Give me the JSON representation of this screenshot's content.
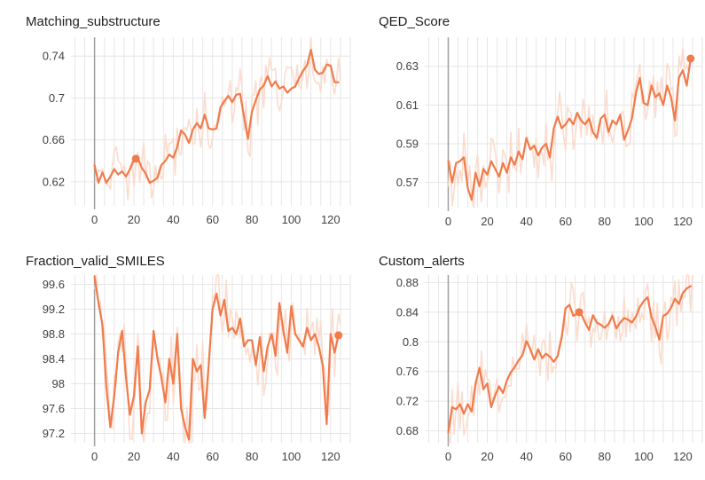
{
  "colors": {
    "line": "#f07b4b",
    "raw_line": "#fbd6c6",
    "grid": "#e6e6e6",
    "origin_axis": "#9e9e9e",
    "text": "#424242"
  },
  "chart_data": [
    {
      "type": "line",
      "title": "Matching_substructure",
      "xlim": [
        -12,
        130
      ],
      "ylim": [
        0.597,
        0.758
      ],
      "x_ticks": [
        "0",
        "20",
        "40",
        "60",
        "80",
        "100",
        "120"
      ],
      "y_ticks": [
        "0.74",
        "0.7",
        "0.66",
        "0.62"
      ],
      "series": [
        {
          "role": "smoothed",
          "points": [
            [
              0,
              0.636
            ],
            [
              2,
              0.619
            ],
            [
              4,
              0.629
            ],
            [
              6,
              0.619
            ],
            [
              8,
              0.625
            ],
            [
              10,
              0.632
            ],
            [
              12,
              0.627
            ],
            [
              14,
              0.63
            ],
            [
              16,
              0.625
            ],
            [
              18,
              0.632
            ],
            [
              20,
              0.641
            ],
            [
              22,
              0.643
            ],
            [
              24,
              0.633
            ],
            [
              26,
              0.628
            ],
            [
              28,
              0.619
            ],
            [
              30,
              0.621
            ],
            [
              32,
              0.624
            ],
            [
              34,
              0.636
            ],
            [
              36,
              0.64
            ],
            [
              38,
              0.646
            ],
            [
              40,
              0.643
            ],
            [
              42,
              0.653
            ],
            [
              44,
              0.669
            ],
            [
              46,
              0.665
            ],
            [
              48,
              0.657
            ],
            [
              50,
              0.67
            ],
            [
              52,
              0.676
            ],
            [
              54,
              0.671
            ],
            [
              56,
              0.684
            ],
            [
              58,
              0.671
            ],
            [
              60,
              0.67
            ],
            [
              62,
              0.671
            ],
            [
              64,
              0.691
            ],
            [
              66,
              0.697
            ],
            [
              68,
              0.702
            ],
            [
              70,
              0.696
            ],
            [
              72,
              0.703
            ],
            [
              74,
              0.704
            ],
            [
              76,
              0.682
            ],
            [
              78,
              0.661
            ],
            [
              80,
              0.687
            ],
            [
              82,
              0.698
            ],
            [
              84,
              0.708
            ],
            [
              86,
              0.712
            ],
            [
              88,
              0.721
            ],
            [
              90,
              0.711
            ],
            [
              92,
              0.716
            ],
            [
              94,
              0.709
            ],
            [
              96,
              0.711
            ],
            [
              98,
              0.705
            ],
            [
              100,
              0.709
            ],
            [
              102,
              0.711
            ],
            [
              104,
              0.719
            ],
            [
              106,
              0.726
            ],
            [
              108,
              0.731
            ],
            [
              110,
              0.746
            ],
            [
              112,
              0.727
            ],
            [
              114,
              0.723
            ],
            [
              116,
              0.724
            ],
            [
              118,
              0.732
            ],
            [
              120,
              0.731
            ],
            [
              122,
              0.715
            ],
            [
              124,
              0.715
            ]
          ]
        }
      ],
      "marker": [
        21,
        0.642
      ]
    },
    {
      "type": "line",
      "title": "QED_Score",
      "xlim": [
        -12,
        130
      ],
      "ylim": [
        0.557,
        0.645
      ],
      "x_ticks": [
        "0",
        "20",
        "40",
        "60",
        "80",
        "100",
        "120"
      ],
      "y_ticks": [
        "0.63",
        "0.61",
        "0.59",
        "0.57"
      ],
      "series": [
        {
          "role": "smoothed",
          "points": [
            [
              0,
              0.581
            ],
            [
              2,
              0.57
            ],
            [
              4,
              0.58
            ],
            [
              6,
              0.581
            ],
            [
              8,
              0.583
            ],
            [
              10,
              0.567
            ],
            [
              12,
              0.561
            ],
            [
              14,
              0.575
            ],
            [
              16,
              0.568
            ],
            [
              18,
              0.577
            ],
            [
              20,
              0.574
            ],
            [
              22,
              0.581
            ],
            [
              24,
              0.577
            ],
            [
              26,
              0.573
            ],
            [
              28,
              0.58
            ],
            [
              30,
              0.575
            ],
            [
              32,
              0.583
            ],
            [
              34,
              0.579
            ],
            [
              36,
              0.586
            ],
            [
              38,
              0.582
            ],
            [
              40,
              0.593
            ],
            [
              42,
              0.587
            ],
            [
              44,
              0.589
            ],
            [
              46,
              0.584
            ],
            [
              48,
              0.588
            ],
            [
              50,
              0.59
            ],
            [
              52,
              0.583
            ],
            [
              54,
              0.598
            ],
            [
              56,
              0.604
            ],
            [
              58,
              0.598
            ],
            [
              60,
              0.6
            ],
            [
              62,
              0.603
            ],
            [
              64,
              0.6
            ],
            [
              66,
              0.606
            ],
            [
              68,
              0.602
            ],
            [
              70,
              0.6
            ],
            [
              72,
              0.603
            ],
            [
              74,
              0.596
            ],
            [
              76,
              0.593
            ],
            [
              78,
              0.603
            ],
            [
              80,
              0.605
            ],
            [
              82,
              0.596
            ],
            [
              84,
              0.602
            ],
            [
              86,
              0.6
            ],
            [
              88,
              0.605
            ],
            [
              90,
              0.592
            ],
            [
              92,
              0.597
            ],
            [
              94,
              0.603
            ],
            [
              96,
              0.616
            ],
            [
              98,
              0.624
            ],
            [
              100,
              0.611
            ],
            [
              102,
              0.61
            ],
            [
              104,
              0.62
            ],
            [
              106,
              0.614
            ],
            [
              108,
              0.616
            ],
            [
              110,
              0.61
            ],
            [
              112,
              0.62
            ],
            [
              114,
              0.614
            ],
            [
              116,
              0.602
            ],
            [
              118,
              0.624
            ],
            [
              120,
              0.628
            ],
            [
              122,
              0.62
            ],
            [
              124,
              0.634
            ]
          ]
        }
      ],
      "marker": [
        124,
        0.634
      ]
    },
    {
      "type": "line",
      "title": "Fraction_valid_SMILES",
      "xlim": [
        -12,
        130
      ],
      "ylim": [
        97.05,
        99.75
      ],
      "x_ticks": [
        "0",
        "20",
        "40",
        "60",
        "80",
        "100",
        "120"
      ],
      "y_ticks": [
        "99.6",
        "99.2",
        "98.8",
        "98.4",
        "98",
        "97.6",
        "97.2"
      ],
      "series": [
        {
          "role": "smoothed",
          "points": [
            [
              0,
              99.72
            ],
            [
              2,
              99.3
            ],
            [
              4,
              98.95
            ],
            [
              6,
              97.95
            ],
            [
              8,
              97.3
            ],
            [
              10,
              97.8
            ],
            [
              12,
              98.5
            ],
            [
              14,
              98.85
            ],
            [
              16,
              98.1
            ],
            [
              18,
              97.5
            ],
            [
              20,
              97.8
            ],
            [
              22,
              98.6
            ],
            [
              24,
              97.2
            ],
            [
              26,
              97.7
            ],
            [
              28,
              97.9
            ],
            [
              30,
              98.85
            ],
            [
              32,
              98.4
            ],
            [
              34,
              98.1
            ],
            [
              36,
              97.7
            ],
            [
              38,
              98.4
            ],
            [
              40,
              98.0
            ],
            [
              42,
              98.8
            ],
            [
              44,
              97.6
            ],
            [
              46,
              97.3
            ],
            [
              48,
              97.1
            ],
            [
              50,
              98.4
            ],
            [
              52,
              98.2
            ],
            [
              54,
              98.3
            ],
            [
              56,
              97.45
            ],
            [
              58,
              98.3
            ],
            [
              60,
              99.2
            ],
            [
              62,
              99.45
            ],
            [
              64,
              99.1
            ],
            [
              66,
              99.35
            ],
            [
              68,
              98.85
            ],
            [
              70,
              98.9
            ],
            [
              72,
              98.8
            ],
            [
              74,
              99.05
            ],
            [
              76,
              98.6
            ],
            [
              78,
              98.7
            ],
            [
              80,
              98.7
            ],
            [
              82,
              98.3
            ],
            [
              84,
              98.75
            ],
            [
              86,
              98.2
            ],
            [
              88,
              98.6
            ],
            [
              90,
              98.8
            ],
            [
              92,
              98.45
            ],
            [
              94,
              99.3
            ],
            [
              96,
              98.85
            ],
            [
              98,
              98.5
            ],
            [
              100,
              99.25
            ],
            [
              102,
              98.8
            ],
            [
              104,
              98.7
            ],
            [
              106,
              98.6
            ],
            [
              108,
              98.9
            ],
            [
              110,
              98.7
            ],
            [
              112,
              98.8
            ],
            [
              114,
              98.6
            ],
            [
              116,
              98.3
            ],
            [
              118,
              97.35
            ],
            [
              120,
              98.8
            ],
            [
              122,
              98.5
            ],
            [
              124,
              98.78
            ]
          ]
        }
      ],
      "marker": [
        124,
        98.78
      ]
    },
    {
      "type": "line",
      "title": "Custom_alerts",
      "xlim": [
        -12,
        130
      ],
      "ylim": [
        0.664,
        0.89
      ],
      "x_ticks": [
        "0",
        "20",
        "40",
        "60",
        "80",
        "100",
        "120"
      ],
      "y_ticks": [
        "0.88",
        "0.84",
        "0.8",
        "0.76",
        "0.72",
        "0.68"
      ],
      "series": [
        {
          "role": "smoothed",
          "points": [
            [
              0,
              0.678
            ],
            [
              2,
              0.712
            ],
            [
              4,
              0.709
            ],
            [
              6,
              0.716
            ],
            [
              8,
              0.703
            ],
            [
              10,
              0.716
            ],
            [
              12,
              0.706
            ],
            [
              14,
              0.744
            ],
            [
              16,
              0.765
            ],
            [
              18,
              0.736
            ],
            [
              20,
              0.744
            ],
            [
              22,
              0.712
            ],
            [
              24,
              0.728
            ],
            [
              26,
              0.74
            ],
            [
              28,
              0.731
            ],
            [
              30,
              0.748
            ],
            [
              32,
              0.759
            ],
            [
              34,
              0.766
            ],
            [
              36,
              0.775
            ],
            [
              38,
              0.782
            ],
            [
              40,
              0.801
            ],
            [
              42,
              0.79
            ],
            [
              44,
              0.776
            ],
            [
              46,
              0.79
            ],
            [
              48,
              0.778
            ],
            [
              50,
              0.784
            ],
            [
              52,
              0.78
            ],
            [
              54,
              0.773
            ],
            [
              56,
              0.781
            ],
            [
              58,
              0.805
            ],
            [
              60,
              0.845
            ],
            [
              62,
              0.85
            ],
            [
              64,
              0.835
            ],
            [
              66,
              0.838
            ],
            [
              68,
              0.838
            ],
            [
              70,
              0.826
            ],
            [
              72,
              0.816
            ],
            [
              74,
              0.836
            ],
            [
              76,
              0.826
            ],
            [
              78,
              0.823
            ],
            [
              80,
              0.819
            ],
            [
              82,
              0.824
            ],
            [
              84,
              0.835
            ],
            [
              86,
              0.818
            ],
            [
              88,
              0.826
            ],
            [
              90,
              0.832
            ],
            [
              92,
              0.83
            ],
            [
              94,
              0.826
            ],
            [
              96,
              0.834
            ],
            [
              98,
              0.847
            ],
            [
              100,
              0.855
            ],
            [
              102,
              0.86
            ],
            [
              104,
              0.833
            ],
            [
              106,
              0.82
            ],
            [
              108,
              0.803
            ],
            [
              110,
              0.835
            ],
            [
              112,
              0.838
            ],
            [
              114,
              0.846
            ],
            [
              116,
              0.858
            ],
            [
              118,
              0.851
            ],
            [
              120,
              0.866
            ],
            [
              122,
              0.872
            ],
            [
              124,
              0.875
            ]
          ]
        }
      ],
      "marker": [
        67,
        0.84
      ]
    }
  ]
}
